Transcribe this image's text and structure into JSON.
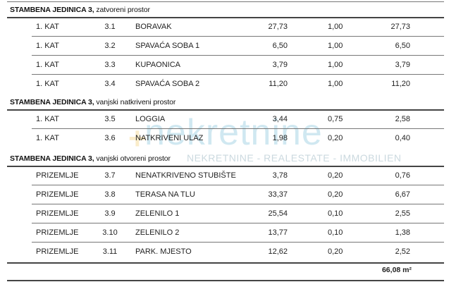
{
  "watermark": {
    "logo": "nekretnine",
    "tagline": "NEKRETNINE - REALESTATE - IMMOBILIEN"
  },
  "sections": [
    {
      "title": "STAMBENA JEDINICA 3,",
      "subtitle": "zatvoreni prostor",
      "rows": [
        {
          "floor": "1. KAT",
          "num": "3.1",
          "name": "BORAVAK",
          "area": "27,73",
          "coef": "1,00",
          "total": "27,73"
        },
        {
          "floor": "1. KAT",
          "num": "3.2",
          "name": "SPAVAĆA SOBA 1",
          "area": "6,50",
          "coef": "1,00",
          "total": "6,50"
        },
        {
          "floor": "1. KAT",
          "num": "3.3",
          "name": "KUPAONICA",
          "area": "3,79",
          "coef": "1,00",
          "total": "3,79"
        },
        {
          "floor": "1. KAT",
          "num": "3.4",
          "name": "SPAVAĆA SOBA 2",
          "area": "11,20",
          "coef": "1,00",
          "total": "11,20"
        }
      ]
    },
    {
      "title": "STAMBENA JEDINICA 3,",
      "subtitle": "vanjski natkriveni prostor",
      "rows": [
        {
          "floor": "1. KAT",
          "num": "3.5",
          "name": "LOGGIA",
          "area": "3,44",
          "coef": "0,75",
          "total": "2,58"
        },
        {
          "floor": "1. KAT",
          "num": "3.6",
          "name": "NATKRIVENI ULAZ",
          "area": "1,98",
          "coef": "0,20",
          "total": "0,40"
        }
      ]
    },
    {
      "title": "STAMBENA JEDINICA 3,",
      "subtitle": "vanjski otvoreni prostor",
      "rows": [
        {
          "floor": "PRIZEMLJE",
          "num": "3.7",
          "name": "NENATKRIVENO STUBIŠTE",
          "area": "3,78",
          "coef": "0,20",
          "total": "0,76"
        },
        {
          "floor": "PRIZEMLJE",
          "num": "3.8",
          "name": "TERASA NA TLU",
          "area": "33,37",
          "coef": "0,20",
          "total": "6,67"
        },
        {
          "floor": "PRIZEMLJE",
          "num": "3.9",
          "name": "ZELENILO 1",
          "area": "25,54",
          "coef": "0,10",
          "total": "2,55"
        },
        {
          "floor": "PRIZEMLJE",
          "num": "3.10",
          "name": "ZELENILO 2",
          "area": "13,77",
          "coef": "0,10",
          "total": "1,38"
        },
        {
          "floor": "PRIZEMLJE",
          "num": "3.11",
          "name": "PARK. MJESTO",
          "area": "12,62",
          "coef": "0,20",
          "total": "2,52"
        }
      ]
    }
  ],
  "grand_total": "66,08 m²"
}
